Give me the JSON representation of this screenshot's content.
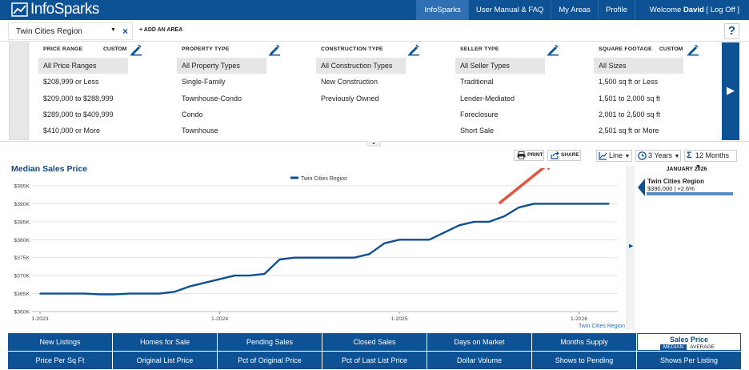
{
  "app": {
    "logo_text": "InfoSparks",
    "colors": {
      "brand": "#0e5296",
      "accent": "#2e70b3",
      "arrow": "#e8533f"
    }
  },
  "topnav": {
    "items": [
      {
        "label": "InfoSparks",
        "active": true
      },
      {
        "label": "User Manual & FAQ"
      },
      {
        "label": "My Areas"
      },
      {
        "label": "Profile"
      }
    ],
    "welcome_prefix": "Welcome ",
    "user": "David",
    "logoff": " [ Log Off ]"
  },
  "areabar": {
    "area_name": "Twin Cities Region",
    "close_icon": "×",
    "add_area": "+ ADD AN AREA",
    "help": "?"
  },
  "filters": [
    {
      "header": "PRICE RANGE",
      "custom": "CUSTOM",
      "options": [
        "All Price Ranges",
        "$208,999 or Less",
        "$209,000 to $288,999",
        "$289,000 to $409,999",
        "$410,000 or More"
      ],
      "selected": 0
    },
    {
      "header": "PROPERTY TYPE",
      "options": [
        "All Property Types",
        "Single-Family",
        "Townhouse-Condo",
        "Condo",
        "Townhouse"
      ],
      "selected": 0
    },
    {
      "header": "CONSTRUCTION TYPE",
      "options": [
        "All Construction Types",
        "New Construction",
        "Previously Owned"
      ],
      "selected": 0
    },
    {
      "header": "SELLER TYPE",
      "options": [
        "All Seller Types",
        "Traditional",
        "Lender-Mediated",
        "Foreclosure",
        "Short Sale"
      ],
      "selected": 0
    },
    {
      "header": "SQUARE FOOTAGE",
      "custom": "CUSTOM",
      "options": [
        "All Sizes",
        "1,500 sq ft or Less",
        "1,501 to 2,000 sq ft",
        "2,001 to 2,500 sq ft",
        "2,501 sq ft or More"
      ],
      "selected": 0
    }
  ],
  "toolbar": {
    "print": "PRINT",
    "share": "SHARE",
    "chart_type": "Line",
    "years": "3 Years",
    "months": "12 Months"
  },
  "side_panel": {
    "date": "JANUARY 2026",
    "region": "Twin Cities Region",
    "value": "$390,000 | +2.6%"
  },
  "chart_data": {
    "type": "line",
    "title": "Median Sales Price",
    "legend": [
      "Twin Cities Region"
    ],
    "x_ticks": [
      "1-2023",
      "1-2024",
      "1-2025",
      "1-2026"
    ],
    "y_ticks": [
      "$360K",
      "$365K",
      "$370K",
      "$375K",
      "$380K",
      "$385K",
      "$390K",
      "$395K"
    ],
    "ylim": [
      360000,
      395000
    ],
    "grid": true,
    "series_label_bottom_right": "Twin Cities Region",
    "series": [
      {
        "name": "Twin Cities Region",
        "color": "#0e4f95",
        "values": [
          365000,
          365000,
          365000,
          365000,
          364800,
          364800,
          365000,
          365000,
          365000,
          365500,
          367000,
          368000,
          369000,
          370000,
          370000,
          370500,
          374500,
          375000,
          375000,
          375000,
          375000,
          375000,
          376000,
          379000,
          380000,
          380000,
          380000,
          382000,
          384000,
          385000,
          385000,
          386500,
          389000,
          390000,
          390000,
          390000,
          390000,
          390000,
          390000
        ]
      }
    ]
  },
  "metrics": [
    {
      "label": "New Listings"
    },
    {
      "label": "Homes for Sale"
    },
    {
      "label": "Pending Sales"
    },
    {
      "label": "Closed Sales"
    },
    {
      "label": "Days on Market"
    },
    {
      "label": "Months Supply"
    },
    {
      "label": "Sales Price",
      "active": true,
      "toggle_on": "MEDIAN",
      "toggle_off": "AVERAGE"
    },
    {
      "label": "Price Per Sq Ft"
    },
    {
      "label": "Original List Price"
    },
    {
      "label": "Pct of Original Price"
    },
    {
      "label": "Pct of Last List Price"
    },
    {
      "label": "Dollar Volume"
    },
    {
      "label": "Shows to Pending"
    },
    {
      "label": "Shows Per Listing"
    }
  ]
}
